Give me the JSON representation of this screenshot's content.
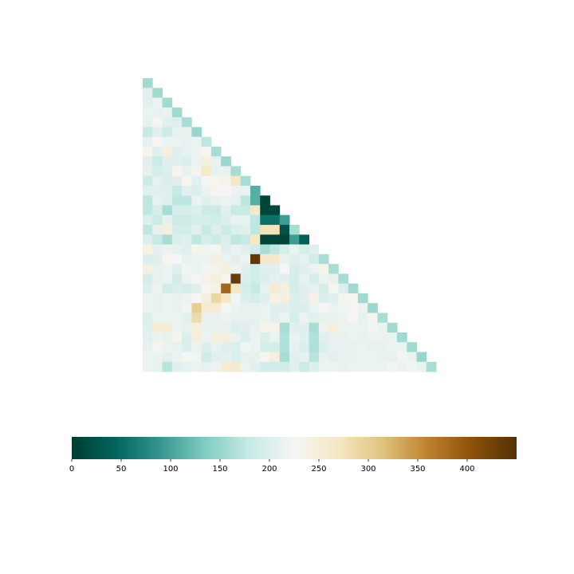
{
  "chart_data": {
    "type": "heatmap",
    "shape": "lower-triangular",
    "rows": 30,
    "colormap": "BrBG_r",
    "vmin": 0,
    "vmax": 450,
    "colorbar": {
      "orientation": "horizontal",
      "ticks": [
        0,
        50,
        100,
        150,
        200,
        250,
        300,
        350,
        400
      ],
      "tick_labels": [
        "0",
        "50",
        "100",
        "150",
        "200",
        "250",
        "300",
        "350",
        "400"
      ]
    },
    "values": [
      [
        155
      ],
      [
        205,
        155
      ],
      [
        205,
        215,
        155
      ],
      [
        215,
        210,
        215,
        155
      ],
      [
        210,
        230,
        205,
        200,
        160
      ],
      [
        180,
        205,
        185,
        210,
        210,
        150
      ],
      [
        210,
        230,
        215,
        215,
        210,
        215,
        175
      ],
      [
        230,
        205,
        245,
        205,
        210,
        215,
        230,
        160
      ],
      [
        205,
        185,
        205,
        205,
        200,
        215,
        245,
        210,
        150
      ],
      [
        210,
        195,
        200,
        230,
        210,
        230,
        265,
        210,
        215,
        160
      ],
      [
        185,
        210,
        200,
        205,
        230,
        205,
        225,
        230,
        235,
        270,
        160
      ],
      [
        205,
        205,
        205,
        180,
        205,
        200,
        215,
        230,
        225,
        215,
        215,
        110
      ],
      [
        175,
        210,
        205,
        175,
        175,
        215,
        205,
        210,
        215,
        210,
        175,
        110,
        10
      ],
      [
        175,
        195,
        160,
        195,
        195,
        200,
        185,
        185,
        205,
        180,
        180,
        265,
        10,
        10
      ],
      [
        200,
        185,
        210,
        185,
        185,
        195,
        195,
        190,
        200,
        210,
        210,
        175,
        55,
        55,
        95
      ],
      [
        175,
        210,
        245,
        195,
        190,
        205,
        180,
        200,
        185,
        200,
        205,
        175,
        275,
        275,
        25,
        160
      ],
      [
        200,
        180,
        160,
        200,
        205,
        175,
        195,
        185,
        200,
        175,
        180,
        270,
        10,
        10,
        10,
        95,
        40
      ],
      [
        240,
        210,
        215,
        210,
        205,
        230,
        220,
        230,
        205,
        215,
        205,
        190,
        160,
        175,
        195,
        215,
        195,
        205
      ],
      [
        200,
        205,
        230,
        225,
        210,
        215,
        215,
        245,
        215,
        205,
        215,
        440,
        265,
        265,
        210,
        205,
        210,
        190,
        160
      ],
      [
        245,
        210,
        215,
        205,
        220,
        215,
        220,
        235,
        245,
        215,
        205,
        190,
        205,
        205,
        225,
        195,
        205,
        215,
        235,
        160
      ],
      [
        195,
        210,
        215,
        190,
        215,
        225,
        235,
        245,
        230,
        435,
        200,
        190,
        200,
        210,
        205,
        195,
        210,
        195,
        215,
        210,
        160
      ],
      [
        200,
        215,
        190,
        200,
        195,
        205,
        230,
        240,
        385,
        270,
        195,
        180,
        210,
        255,
        245,
        195,
        205,
        210,
        195,
        230,
        200,
        155
      ],
      [
        215,
        210,
        215,
        210,
        215,
        225,
        245,
        290,
        270,
        220,
        200,
        195,
        205,
        240,
        245,
        200,
        205,
        240,
        200,
        205,
        230,
        230,
        155
      ],
      [
        215,
        210,
        215,
        210,
        220,
        300,
        255,
        255,
        225,
        215,
        210,
        210,
        215,
        205,
        205,
        200,
        200,
        215,
        225,
        215,
        220,
        230,
        215,
        150
      ],
      [
        200,
        215,
        215,
        215,
        205,
        285,
        210,
        210,
        215,
        210,
        210,
        210,
        215,
        205,
        215,
        195,
        215,
        205,
        210,
        210,
        215,
        225,
        210,
        230,
        160
      ],
      [
        205,
        255,
        255,
        215,
        210,
        250,
        210,
        210,
        210,
        200,
        205,
        210,
        235,
        235,
        160,
        205,
        205,
        160,
        215,
        250,
        215,
        215,
        215,
        220,
        215,
        155
      ],
      [
        205,
        215,
        210,
        230,
        200,
        250,
        215,
        250,
        245,
        215,
        200,
        215,
        200,
        215,
        165,
        215,
        205,
        165,
        205,
        210,
        210,
        215,
        210,
        215,
        215,
        215,
        155
      ],
      [
        210,
        230,
        215,
        210,
        200,
        215,
        200,
        210,
        205,
        200,
        220,
        215,
        195,
        195,
        165,
        210,
        200,
        165,
        200,
        210,
        210,
        210,
        215,
        210,
        210,
        215,
        215,
        155
      ],
      [
        215,
        215,
        205,
        215,
        225,
        220,
        190,
        205,
        210,
        200,
        210,
        210,
        230,
        245,
        160,
        205,
        210,
        170,
        210,
        205,
        215,
        210,
        215,
        215,
        210,
        210,
        220,
        215,
        150
      ],
      [
        215,
        210,
        170,
        205,
        210,
        215,
        210,
        215,
        255,
        260,
        215,
        205,
        190,
        190,
        190,
        205,
        185,
        200,
        215,
        215,
        210,
        215,
        215,
        215,
        215,
        220,
        215,
        220,
        215,
        160
      ]
    ]
  }
}
